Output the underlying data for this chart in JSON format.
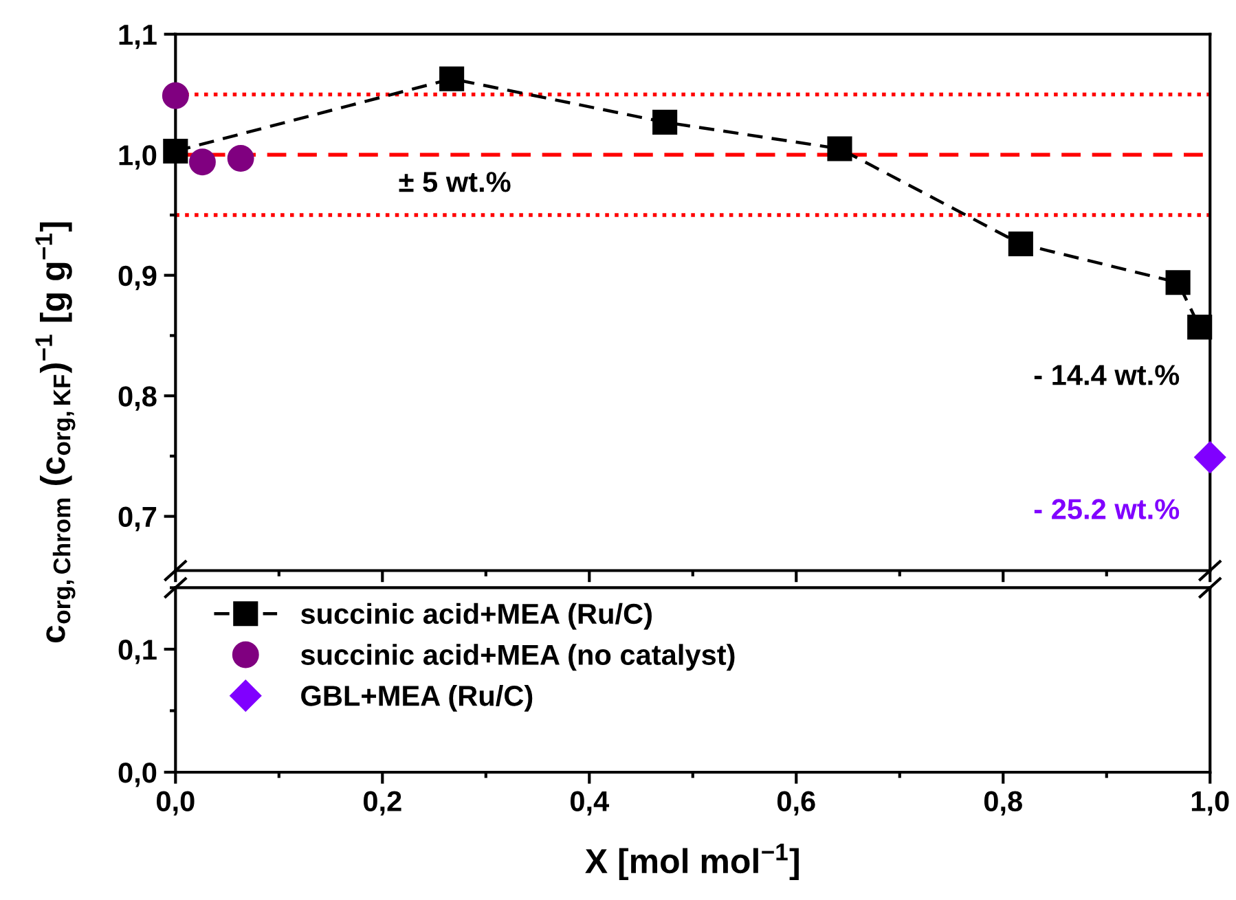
{
  "chart_data": [
    {
      "type": "line",
      "ylabel": "c$_{org,Chrom}$ (c$_{org,KF}$)$^{−1}$ [g g$^{−1}$]",
      "xlim": [
        0,
        1
      ],
      "xticks": [
        0,
        0.2,
        0.4,
        0.6,
        0.8,
        1.0
      ],
      "ylim": [
        0.655,
        1.1
      ],
      "yticks": [
        {
          "value": 0.7,
          "label": "0,7"
        },
        {
          "value": 0.8,
          "label": "0,8"
        },
        {
          "value": 0.9,
          "label": "0,9"
        },
        {
          "value": 1.0,
          "label": "1,0"
        },
        {
          "value": 1.1,
          "label": "1,1"
        }
      ],
      "tick_labels": "y",
      "grid": false,
      "legend": "bottom left",
      "series": [
        {
          "name": "succinic acid+MEA (Ru/C)",
          "color": "#000000",
          "marker": "square",
          "line_style": "dashed",
          "x": [
            0,
            0.267,
            0.473,
            0.642,
            0.817,
            0.969,
            0.99
          ],
          "values": [
            1.003,
            1.063,
            1.027,
            1.005,
            0.926,
            0.894,
            0.857
          ]
        },
        {
          "name": "succinic acid+MEA (no catalyst)",
          "color": "#800080",
          "type": "scatter",
          "marker": "circle",
          "x": [
            0,
            0.026,
            0.063
          ],
          "values": [
            1.049,
            0.994,
            0.997
          ]
        },
        {
          "name": "GBL+MEA (Ru/C)",
          "color": "#8000ff",
          "type": "scatter",
          "marker": "diamond",
          "x": [
            1.0
          ],
          "values": [
            0.749
          ]
        }
      ],
      "ref_lines": [
        {
          "axis": "y",
          "value": 1.05,
          "color": "#ff0000",
          "line_style": "dotted"
        },
        {
          "axis": "y",
          "value": 1.0,
          "color": "#ff0000",
          "line_style": "dashed"
        },
        {
          "axis": "y",
          "value": 0.95,
          "color": "#ff0000",
          "line_style": "dotted"
        }
      ],
      "annotations": [
        "± 5 wt.%",
        "- 14.4 wt.%",
        "- 25.2 wt.%"
      ]
    },
    {
      "type": "line",
      "xlabel": "X [mol mol$^{−1}$]",
      "xlim": [
        0,
        1
      ],
      "xticks": [
        {
          "value": 0,
          "label": "0,0"
        },
        {
          "value": 0.2,
          "label": "0,2"
        },
        {
          "value": 0.4,
          "label": "0,4"
        },
        {
          "value": 0.6,
          "label": "0,6"
        },
        {
          "value": 0.8,
          "label": "0,8"
        },
        {
          "value": 1.0,
          "label": "1,0"
        }
      ],
      "ylim": [
        0,
        0.15
      ],
      "yticks": [
        {
          "value": 0,
          "label": "0,0"
        },
        {
          "value": 0.1,
          "label": "0,1"
        }
      ],
      "grid": false
    }
  ]
}
